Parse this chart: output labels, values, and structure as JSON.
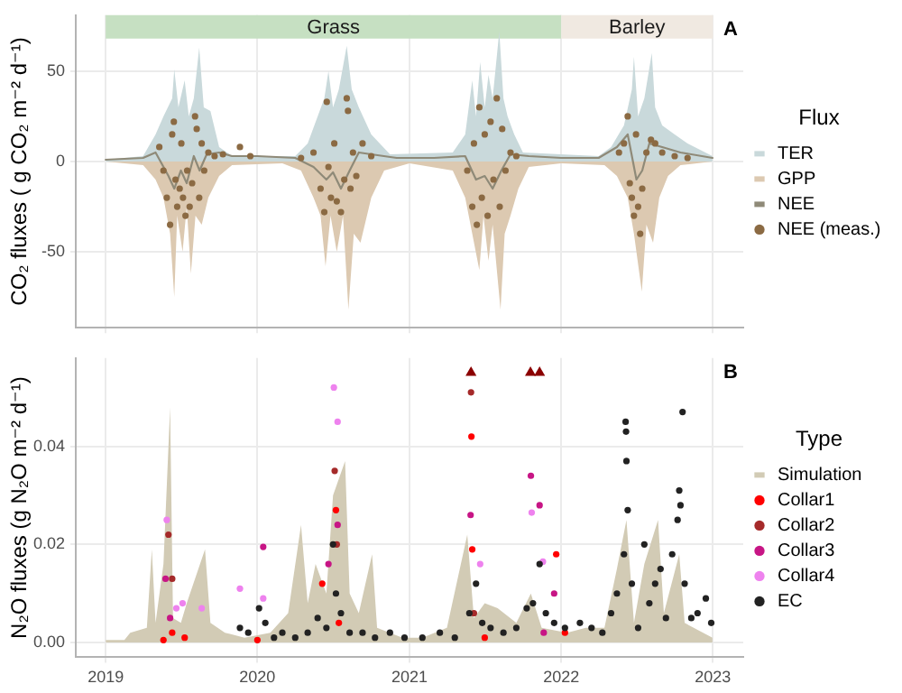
{
  "chart_data": [
    {
      "type": "area",
      "ylabel": "CO₂ fluxes ( g CO₂ m⁻² d⁻¹)",
      "legend_title": "Flux",
      "legend": "right",
      "grid": true,
      "tick_labels": "y",
      "annotations": [
        "A"
      ],
      "xlim": [
        "2018-10-21",
        "2023-03-15"
      ],
      "xticks": [
        "2019",
        "2020",
        "2021",
        "2022",
        "2023"
      ],
      "ylim": [
        -92,
        81
      ],
      "yticks": [
        -50,
        0,
        50
      ],
      "bands": [
        {
          "axis": "x",
          "from": "2019-01-01",
          "to": "2022-01-01",
          "label": "Grass",
          "color": "#c6e0c2"
        },
        {
          "axis": "x",
          "from": "2022-01-01",
          "to": "2023-01-01",
          "label": "Barley",
          "color": "#f0e9e1"
        }
      ],
      "series": [
        {
          "name": "TER",
          "type": "area",
          "color": "#c9d9db",
          "x": [
            "2019-01-01",
            "2019-04-01",
            "2019-05-01",
            "2019-05-20",
            "2019-06-10",
            "2019-06-15",
            "2019-06-25",
            "2019-07-10",
            "2019-07-20",
            "2019-08-01",
            "2019-08-14",
            "2019-08-25",
            "2019-09-10",
            "2019-10-01",
            "2019-11-01",
            "2020-04-01",
            "2020-05-01",
            "2020-05-25",
            "2020-06-10",
            "2020-06-20",
            "2020-07-01",
            "2020-07-15",
            "2020-08-03",
            "2020-08-15",
            "2020-09-01",
            "2020-10-01",
            "2020-11-15",
            "2021-04-15",
            "2021-05-15",
            "2021-06-01",
            "2021-06-10",
            "2021-06-20",
            "2021-07-01",
            "2021-07-10",
            "2021-07-20",
            "2021-08-05",
            "2021-08-15",
            "2021-08-25",
            "2021-09-10",
            "2021-10-01",
            "2022-04-01",
            "2022-05-01",
            "2022-06-01",
            "2022-06-20",
            "2022-06-25",
            "2022-07-05",
            "2022-07-20",
            "2022-08-07",
            "2022-08-15",
            "2022-09-01",
            "2022-10-01",
            "2022-11-01",
            "2022-12-31"
          ],
          "values": [
            1,
            3,
            15,
            25,
            35,
            51,
            30,
            45,
            25,
            35,
            63,
            30,
            28,
            8,
            3,
            3,
            10,
            25,
            35,
            50,
            30,
            40,
            64,
            40,
            30,
            15,
            4,
            5,
            15,
            45,
            25,
            55,
            30,
            48,
            35,
            72,
            35,
            25,
            15,
            5,
            3,
            8,
            20,
            40,
            58,
            25,
            35,
            60,
            30,
            20,
            15,
            10,
            3
          ]
        },
        {
          "name": "GPP",
          "type": "area",
          "color": "#dcc9b1",
          "x": [
            "2019-01-01",
            "2019-04-01",
            "2019-05-01",
            "2019-05-20",
            "2019-06-05",
            "2019-06-15",
            "2019-06-22",
            "2019-07-05",
            "2019-07-15",
            "2019-07-25",
            "2019-08-05",
            "2019-08-20",
            "2019-09-05",
            "2019-10-01",
            "2019-11-01",
            "2020-03-01",
            "2020-04-15",
            "2020-05-15",
            "2020-06-01",
            "2020-06-13",
            "2020-06-25",
            "2020-07-10",
            "2020-07-25",
            "2020-08-07",
            "2020-08-20",
            "2020-09-05",
            "2020-10-01",
            "2020-11-01",
            "2021-01-01",
            "2021-04-15",
            "2021-05-15",
            "2021-06-18",
            "2021-06-28",
            "2021-07-10",
            "2021-07-20",
            "2021-08-08",
            "2021-08-18",
            "2021-09-01",
            "2021-09-20",
            "2021-10-15",
            "2022-01-01",
            "2022-04-15",
            "2022-05-15",
            "2022-06-10",
            "2022-06-25",
            "2022-07-14",
            "2022-07-25",
            "2022-08-10",
            "2022-08-25",
            "2022-09-15",
            "2022-10-15",
            "2022-12-31"
          ],
          "values": [
            0,
            -2,
            -10,
            -20,
            -40,
            -75,
            -30,
            -50,
            -25,
            -62,
            -30,
            -35,
            -20,
            -8,
            -2,
            -1,
            -5,
            -20,
            -30,
            -58,
            -30,
            -50,
            -30,
            -82,
            -40,
            -45,
            -20,
            -5,
            -1,
            -5,
            -20,
            -60,
            -30,
            -55,
            -35,
            -82,
            -40,
            -30,
            -15,
            -3,
            -1,
            -2,
            -8,
            -20,
            -40,
            -72,
            -35,
            -45,
            -20,
            -8,
            -2,
            0
          ]
        },
        {
          "name": "NEE",
          "type": "line",
          "color": "#8f8a78",
          "x": [
            "2019-01-01",
            "2019-04-01",
            "2019-05-01",
            "2019-06-01",
            "2019-06-15",
            "2019-07-01",
            "2019-07-15",
            "2019-08-01",
            "2019-08-15",
            "2019-09-01",
            "2019-10-01",
            "2019-11-01",
            "2020-01-01",
            "2020-04-01",
            "2020-05-15",
            "2020-06-15",
            "2020-07-01",
            "2020-07-20",
            "2020-08-10",
            "2020-09-01",
            "2020-10-01",
            "2020-12-01",
            "2021-03-01",
            "2021-05-15",
            "2021-06-10",
            "2021-07-01",
            "2021-07-20",
            "2021-08-10",
            "2021-09-01",
            "2021-10-15",
            "2022-01-01",
            "2022-04-01",
            "2022-05-15",
            "2022-06-10",
            "2022-07-01",
            "2022-07-15",
            "2022-08-01",
            "2022-09-01",
            "2022-10-15",
            "2022-12-31"
          ],
          "values": [
            1,
            2,
            5,
            -8,
            -15,
            -5,
            -12,
            3,
            -5,
            4,
            5,
            3,
            3,
            2,
            -3,
            -10,
            -6,
            -15,
            -5,
            5,
            4,
            2,
            2,
            3,
            -10,
            -8,
            -15,
            -5,
            4,
            3,
            2,
            2,
            8,
            15,
            -10,
            -5,
            10,
            8,
            5,
            2
          ]
        },
        {
          "name": "NEE (meas.)",
          "type": "scatter",
          "color": "#8b6a43",
          "x": [
            "2019-05-10",
            "2019-05-20",
            "2019-05-28",
            "2019-06-05",
            "2019-06-10",
            "2019-06-14",
            "2019-06-18",
            "2019-06-22",
            "2019-06-28",
            "2019-07-02",
            "2019-07-06",
            "2019-07-12",
            "2019-07-16",
            "2019-07-22",
            "2019-07-28",
            "2019-08-04",
            "2019-08-08",
            "2019-08-14",
            "2019-08-20",
            "2019-08-26",
            "2019-09-05",
            "2019-09-20",
            "2019-10-10",
            "2019-11-20",
            "2019-12-15",
            "2020-04-15",
            "2020-05-15",
            "2020-06-01",
            "2020-06-10",
            "2020-06-16",
            "2020-06-20",
            "2020-06-26",
            "2020-07-04",
            "2020-07-10",
            "2020-07-20",
            "2020-07-28",
            "2020-08-03",
            "2020-08-06",
            "2020-08-12",
            "2020-08-18",
            "2020-08-26",
            "2020-09-10",
            "2020-10-01",
            "2021-05-20",
            "2021-06-01",
            "2021-06-05",
            "2021-06-12",
            "2021-06-18",
            "2021-06-24",
            "2021-07-01",
            "2021-07-08",
            "2021-07-15",
            "2021-07-22",
            "2021-07-30",
            "2021-08-06",
            "2021-08-12",
            "2021-08-20",
            "2021-09-01",
            "2021-09-15",
            "2022-05-20",
            "2022-06-01",
            "2022-06-10",
            "2022-06-15",
            "2022-06-20",
            "2022-06-25",
            "2022-06-30",
            "2022-07-05",
            "2022-07-10",
            "2022-07-15",
            "2022-07-25",
            "2022-08-05",
            "2022-08-15",
            "2022-09-01",
            "2022-10-01",
            "2022-11-01"
          ],
          "values": [
            8,
            -5,
            -20,
            -35,
            15,
            22,
            -10,
            -25,
            -15,
            10,
            -20,
            -30,
            -5,
            -25,
            -12,
            25,
            18,
            -20,
            10,
            -5,
            5,
            3,
            4,
            8,
            3,
            2,
            5,
            -15,
            -28,
            33,
            -3,
            -20,
            10,
            -22,
            -28,
            -10,
            35,
            28,
            -15,
            5,
            -8,
            10,
            3,
            -5,
            -25,
            10,
            -35,
            30,
            -20,
            15,
            -30,
            22,
            -10,
            35,
            -25,
            18,
            -5,
            5,
            3,
            5,
            10,
            25,
            -12,
            -20,
            -30,
            15,
            -25,
            -40,
            -15,
            5,
            12,
            10,
            5,
            3,
            2
          ]
        }
      ]
    },
    {
      "type": "area",
      "ylabel": "N₂O fluxes (g N₂O m⁻² d⁻¹)",
      "legend_title": "Type",
      "legend": "right",
      "grid": true,
      "annotations": [
        "B"
      ],
      "xlim": [
        "2018-10-21",
        "2023-03-15"
      ],
      "xticks": [
        "2019",
        "2020",
        "2021",
        "2022",
        "2023"
      ],
      "ylim": [
        -0.003,
        0.058
      ],
      "yticks": [
        {
          "value": 0,
          "label": "0.00"
        },
        {
          "value": 0.02,
          "label": "0.02"
        },
        {
          "value": 0.04,
          "label": "0.04"
        }
      ],
      "series": [
        {
          "name": "Simulation",
          "type": "area",
          "color": "#d2cbb5",
          "x": [
            "2019-01-01",
            "2019-02-15",
            "2019-03-01",
            "2019-04-10",
            "2019-04-22",
            "2019-05-01",
            "2019-05-20",
            "2019-06-05",
            "2019-06-12",
            "2019-07-01",
            "2019-07-15",
            "2019-08-28",
            "2019-09-10",
            "2019-10-15",
            "2019-12-01",
            "2020-02-01",
            "2020-03-15",
            "2020-04-15",
            "2020-05-01",
            "2020-05-20",
            "2020-06-15",
            "2020-07-01",
            "2020-07-30",
            "2020-08-10",
            "2020-09-01",
            "2020-10-03",
            "2020-10-15",
            "2020-12-15",
            "2021-02-01",
            "2021-04-01",
            "2021-05-20",
            "2021-06-05",
            "2021-07-01",
            "2021-08-01",
            "2021-09-15",
            "2021-10-20",
            "2021-11-15",
            "2022-01-15",
            "2022-03-01",
            "2022-04-15",
            "2022-05-15",
            "2022-06-07",
            "2022-06-25",
            "2022-07-20",
            "2022-08-22",
            "2022-09-05",
            "2022-10-12",
            "2022-10-25",
            "2022-12-31"
          ],
          "values": [
            0.0005,
            0.0005,
            0.002,
            0.003,
            0.019,
            0.004,
            0.016,
            0.048,
            0.005,
            0.004,
            0.008,
            0.019,
            0.004,
            0.002,
            0.001,
            0.002,
            0.006,
            0.024,
            0.008,
            0.016,
            0.01,
            0.03,
            0.037,
            0.01,
            0.006,
            0.018,
            0.003,
            0.001,
            0.001,
            0.003,
            0.022,
            0.005,
            0.008,
            0.007,
            0.004,
            0.01,
            0.003,
            0.002,
            0.003,
            0.003,
            0.015,
            0.025,
            0.004,
            0.016,
            0.025,
            0.006,
            0.018,
            0.004,
            0.001
          ]
        },
        {
          "name": "Collar1",
          "type": "scatter",
          "color": "#ff0000",
          "x": [
            "2019-05-20",
            "2019-06-10",
            "2019-07-10",
            "2020-01-01",
            "2020-06-05",
            "2020-07-08",
            "2020-07-15",
            "2021-05-30",
            "2021-06-01",
            "2021-07-01",
            "2021-12-20",
            "2022-01-10"
          ],
          "values": [
            0.0005,
            0.002,
            0.001,
            0.0005,
            0.012,
            0.027,
            0.004,
            0.042,
            0.019,
            0.001,
            0.018,
            0.002
          ]
        },
        {
          "name": "Collar2",
          "type": "scatter",
          "color": "#a52a2a",
          "x": [
            "2019-06-01",
            "2019-06-10",
            "2020-07-05",
            "2020-07-10",
            "2021-05-29",
            "2021-06-05"
          ],
          "values": [
            0.022,
            0.013,
            0.035,
            0.02,
            0.051,
            0.006
          ]
        },
        {
          "name": "Collar3",
          "type": "scatter",
          "color": "#c71585",
          "x": [
            "2019-05-25",
            "2019-06-05",
            "2020-01-15",
            "2020-06-20",
            "2020-07-12",
            "2021-05-28",
            "2021-10-20",
            "2021-11-10",
            "2021-11-20",
            "2021-12-15"
          ],
          "values": [
            0.013,
            0.005,
            0.0195,
            0.016,
            0.024,
            0.026,
            0.034,
            0.028,
            0.002,
            0.01
          ]
        },
        {
          "name": "Collar4",
          "type": "scatter",
          "color": "#ee82ee",
          "x": [
            "2019-05-28",
            "2019-06-20",
            "2019-07-05",
            "2019-08-20",
            "2019-11-20",
            "2020-01-15",
            "2020-07-03",
            "2020-07-12",
            "2021-06-20",
            "2021-10-22",
            "2021-11-18"
          ],
          "values": [
            0.025,
            0.007,
            0.008,
            0.007,
            0.011,
            0.009,
            0.052,
            0.045,
            0.016,
            0.0265,
            0.0165
          ]
        },
        {
          "name": "EC",
          "type": "scatter",
          "color": "#222222",
          "x": [
            "2019-11-20",
            "2019-12-10",
            "2020-01-05",
            "2020-01-20",
            "2020-02-10",
            "2020-03-01",
            "2020-04-01",
            "2020-05-01",
            "2020-05-25",
            "2020-06-15",
            "2020-07-01",
            "2020-07-08",
            "2020-07-20",
            "2020-08-10",
            "2020-09-10",
            "2020-10-10",
            "2020-11-15",
            "2020-12-20",
            "2021-02-01",
            "2021-03-15",
            "2021-04-20",
            "2021-05-25",
            "2021-06-10",
            "2021-06-25",
            "2021-07-15",
            "2021-08-15",
            "2021-09-15",
            "2021-10-10",
            "2021-10-25",
            "2021-11-10",
            "2021-11-25",
            "2021-12-15",
            "2022-01-10",
            "2022-02-15",
            "2022-03-15",
            "2022-04-10",
            "2022-05-01",
            "2022-05-15",
            "2022-06-01",
            "2022-06-05",
            "2022-06-06",
            "2022-06-07",
            "2022-06-10",
            "2022-06-20",
            "2022-07-05",
            "2022-07-20",
            "2022-08-01",
            "2022-08-15",
            "2022-08-28",
            "2022-09-10",
            "2022-09-25",
            "2022-10-08",
            "2022-10-12",
            "2022-10-15",
            "2022-10-20",
            "2022-10-25",
            "2022-11-10",
            "2022-11-25",
            "2022-12-15",
            "2022-12-28"
          ],
          "values": [
            0.003,
            0.002,
            0.007,
            0.004,
            0.001,
            0.002,
            0.001,
            0.002,
            0.005,
            0.003,
            0.02,
            0.01,
            0.006,
            0.002,
            0.002,
            0.001,
            0.002,
            0.001,
            0.001,
            0.002,
            0.001,
            0.006,
            0.012,
            0.004,
            0.003,
            0.002,
            0.003,
            0.007,
            0.008,
            0.016,
            0.006,
            0.004,
            0.003,
            0.004,
            0.003,
            0.002,
            0.006,
            0.01,
            0.018,
            0.045,
            0.043,
            0.037,
            0.027,
            0.012,
            0.003,
            0.02,
            0.008,
            0.012,
            0.015,
            0.005,
            0.018,
            0.025,
            0.031,
            0.028,
            0.047,
            0.012,
            0.005,
            0.006,
            0.009,
            0.004
          ]
        },
        {
          "type": "scatter",
          "marker": "triangle",
          "color": "#8b0000",
          "x": [
            "2021-05-29",
            "2021-10-19",
            "2021-11-10"
          ],
          "values": [
            0.055,
            0.055,
            0.055
          ]
        }
      ]
    }
  ]
}
